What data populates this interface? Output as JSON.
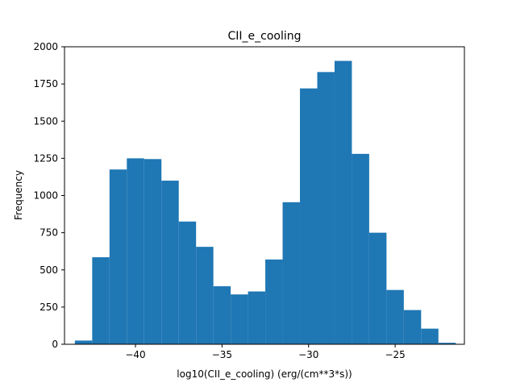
{
  "chart_data": {
    "type": "bar",
    "title": "CII_e_cooling",
    "xlabel": "log10(CII_e_cooling) (erg/(cm**3*s))",
    "ylabel": "Frequency",
    "xlim": [
      -44.1,
      -21.0
    ],
    "ylim": [
      0,
      2000
    ],
    "xticks": [
      -40,
      -35,
      -30,
      -25
    ],
    "xtick_labels": [
      "−40",
      "−35",
      "−30",
      "−25"
    ],
    "yticks": [
      0,
      250,
      500,
      750,
      1000,
      1250,
      1500,
      1750,
      2000
    ],
    "ytick_labels": [
      "0",
      "250",
      "500",
      "750",
      "1000",
      "1250",
      "1500",
      "1750",
      "2000"
    ],
    "bin_start": -43.5,
    "bin_width": 1.0,
    "values": [
      25,
      585,
      1175,
      1250,
      1245,
      1100,
      825,
      655,
      390,
      335,
      355,
      570,
      955,
      1720,
      1830,
      1905,
      1280,
      750,
      365,
      230,
      105,
      10
    ],
    "bar_color": "#1f77b4",
    "grid": false,
    "legend": "none"
  }
}
